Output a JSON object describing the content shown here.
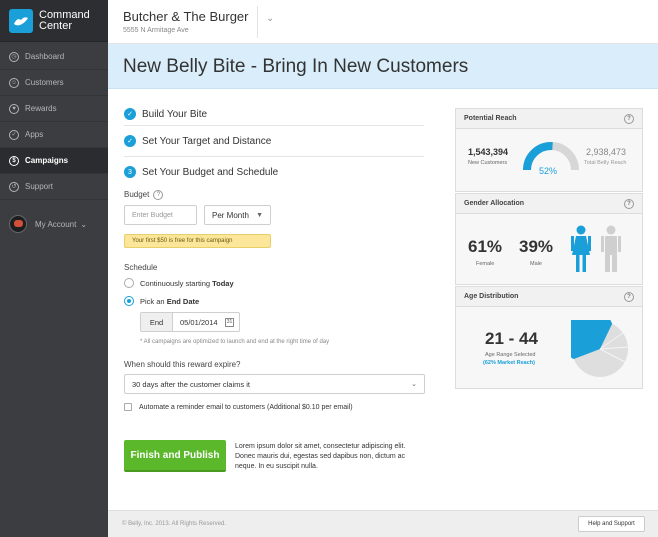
{
  "colors": {
    "accent": "#1a9fd9",
    "sidebar": "#3b3d40",
    "publish": "#5cb82b",
    "banner": "#d9eefa"
  },
  "brand": {
    "line1": "Command",
    "line2": "Center"
  },
  "nav": [
    {
      "label": "Dashboard",
      "icon": "dashboard-icon",
      "glyph": "◷"
    },
    {
      "label": "Customers",
      "icon": "customers-icon",
      "glyph": "☺"
    },
    {
      "label": "Rewards",
      "icon": "rewards-icon",
      "glyph": "♥"
    },
    {
      "label": "Apps",
      "icon": "apps-icon",
      "glyph": "✓"
    },
    {
      "label": "Campaigns",
      "icon": "campaigns-icon",
      "glyph": "$"
    },
    {
      "label": "Support",
      "icon": "support-icon",
      "glyph": "↺"
    }
  ],
  "account": {
    "label": "My Account",
    "chevron": "⌄"
  },
  "header": {
    "business_name": "Butcher & The Burger",
    "address": "5555 N Armitage Ave",
    "chevron": "⌄"
  },
  "banner": {
    "title": "New Belly Bite - Bring In New Customers"
  },
  "steps": [
    {
      "label": "Build Your Bite",
      "marker": "✓"
    },
    {
      "label": "Set Your Target and Distance",
      "marker": "✓"
    },
    {
      "label": "Set Your Budget and Schedule",
      "marker": "3"
    }
  ],
  "budget": {
    "label": "Budget",
    "help": "?",
    "placeholder": "Enter Budget",
    "period": "Per Month",
    "promo": "Your first $50 is free for this campaign"
  },
  "schedule": {
    "label": "Schedule",
    "option1_prefix": "Continuously starting ",
    "option1_bold": "Today",
    "option2_prefix": "Pick an ",
    "option2_bold": "End Date",
    "end_label": "End",
    "end_value": "05/01/2014",
    "cal_icon": "31",
    "note": "* All campaigns are optimized to launch and end at the right time of day"
  },
  "expire": {
    "question": "When should this reward expire?",
    "value": "30 days after the customer claims it"
  },
  "reminder": {
    "label": "Automate a reminder email to customers (Additional $0.10 per email)"
  },
  "publish": {
    "label": "Finish and Publish"
  },
  "lorem": "Lorem ipsum dolor sit amet, consectetur adipiscing elit. Donec mauris dui, egestas sed dapibus non, dictum ac neque. In eu suscipit nulla.",
  "footer": {
    "copyright": "© Belly, Inc. 2013. All Rights Reserved.",
    "help_button": "Help and Support"
  },
  "reach": {
    "title": "Potential Reach",
    "help": "?",
    "new_customers": "1,543,394",
    "new_label": "New Customers",
    "total": "2,938,473",
    "total_label": "Total Belly Reach",
    "percent": "52%",
    "fraction": 0.52
  },
  "gender": {
    "title": "Gender Allocation",
    "help": "?",
    "female_pct": "61%",
    "female_label": "Female",
    "male_pct": "39%",
    "male_label": "Male"
  },
  "age": {
    "title": "Age Distribution",
    "help": "?",
    "range": "21 - 44",
    "range_label": "Age Range Selected",
    "market_share": "(62% Market Reach)",
    "fraction": 0.62
  }
}
